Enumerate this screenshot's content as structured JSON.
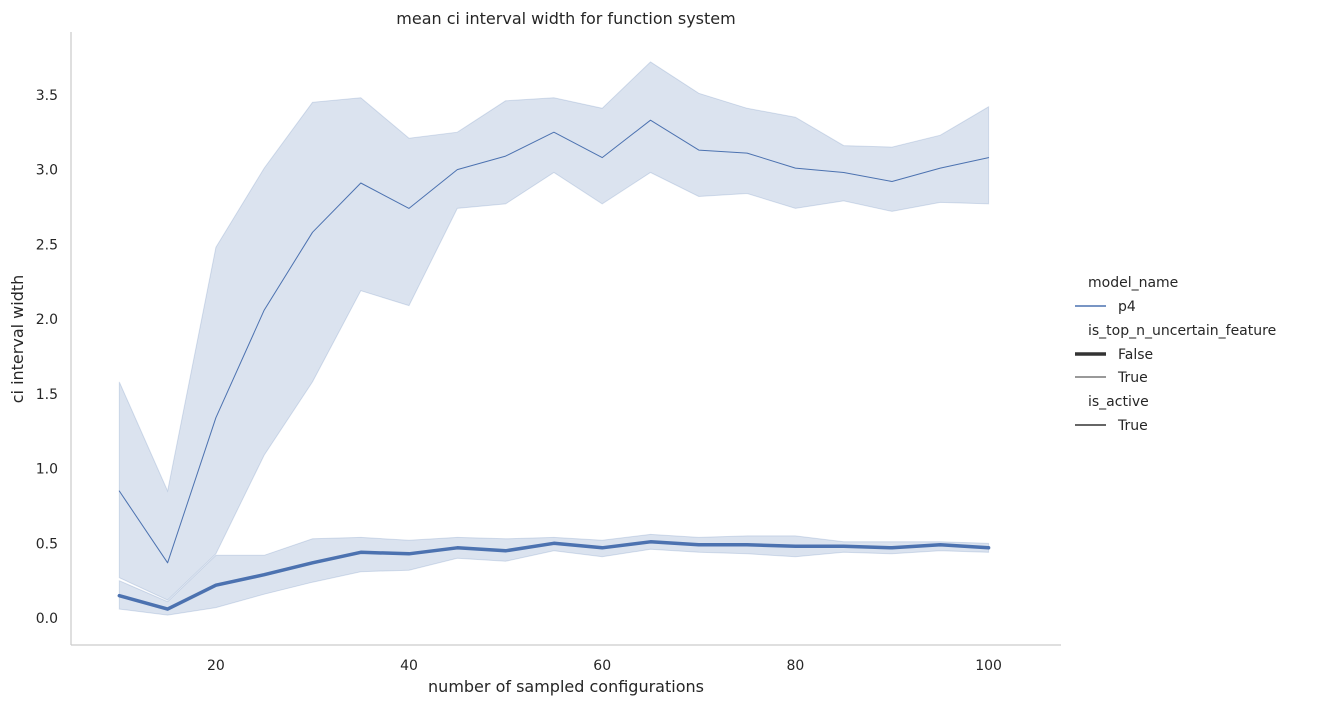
{
  "chart_data": {
    "type": "line",
    "title": "mean ci interval width for function system",
    "xlabel": "number of sampled configurations",
    "ylabel": "ci interval width",
    "xlim": [
      5,
      107.5
    ],
    "ylim": [
      -0.18,
      3.92
    ],
    "x_ticks": [
      20,
      40,
      60,
      80,
      100
    ],
    "y_ticks": [
      0.0,
      0.5,
      1.0,
      1.5,
      2.0,
      2.5,
      3.0,
      3.5
    ],
    "y_tick_labels": [
      "0.0",
      "0.5",
      "1.0",
      "1.5",
      "2.0",
      "2.5",
      "3.0",
      "3.5"
    ],
    "grid": false,
    "color": "#4c72b0",
    "x": [
      10,
      15,
      20,
      25,
      30,
      35,
      40,
      45,
      50,
      55,
      60,
      65,
      70,
      75,
      80,
      85,
      90,
      95,
      100
    ],
    "series": [
      {
        "is_top_n_uncertain_feature": "False",
        "values": [
          0.15,
          0.06,
          0.22,
          0.29,
          0.37,
          0.44,
          0.43,
          0.47,
          0.45,
          0.5,
          0.47,
          0.51,
          0.49,
          0.49,
          0.48,
          0.48,
          0.47,
          0.49,
          0.47
        ],
        "ci_low": [
          0.06,
          0.02,
          0.07,
          0.16,
          0.24,
          0.31,
          0.32,
          0.4,
          0.38,
          0.45,
          0.41,
          0.46,
          0.44,
          0.43,
          0.41,
          0.44,
          0.43,
          0.45,
          0.44
        ],
        "ci_high": [
          0.25,
          0.11,
          0.42,
          0.42,
          0.53,
          0.54,
          0.52,
          0.54,
          0.53,
          0.54,
          0.52,
          0.56,
          0.54,
          0.55,
          0.55,
          0.51,
          0.51,
          0.51,
          0.5
        ],
        "line_width": 3.5
      },
      {
        "is_top_n_uncertain_feature": "True",
        "values": [
          0.85,
          0.37,
          1.34,
          2.06,
          2.58,
          2.91,
          2.74,
          3.0,
          3.09,
          3.25,
          3.08,
          3.33,
          3.13,
          3.11,
          3.01,
          2.98,
          2.92,
          3.01,
          3.08
        ],
        "ci_low": [
          0.27,
          0.12,
          0.43,
          1.09,
          1.58,
          2.19,
          2.09,
          2.74,
          2.77,
          2.98,
          2.77,
          2.98,
          2.82,
          2.84,
          2.74,
          2.79,
          2.72,
          2.78,
          2.77
        ],
        "ci_high": [
          1.58,
          0.85,
          2.48,
          3.01,
          3.45,
          3.48,
          3.21,
          3.25,
          3.46,
          3.48,
          3.41,
          3.72,
          3.51,
          3.41,
          3.35,
          3.16,
          3.15,
          3.23,
          3.42
        ],
        "line_width": 1
      }
    ],
    "legend": {
      "placement": "right",
      "groups": [
        {
          "title": "model_name",
          "entries": [
            {
              "label": "p4",
              "kind": "hue"
            }
          ]
        },
        {
          "title": "is_top_n_uncertain_feature",
          "entries": [
            {
              "label": "False",
              "kind": "size-thick"
            },
            {
              "label": "True",
              "kind": "size-thin"
            }
          ]
        },
        {
          "title": "is_active",
          "entries": [
            {
              "label": "True",
              "kind": "style"
            }
          ]
        }
      ]
    }
  }
}
